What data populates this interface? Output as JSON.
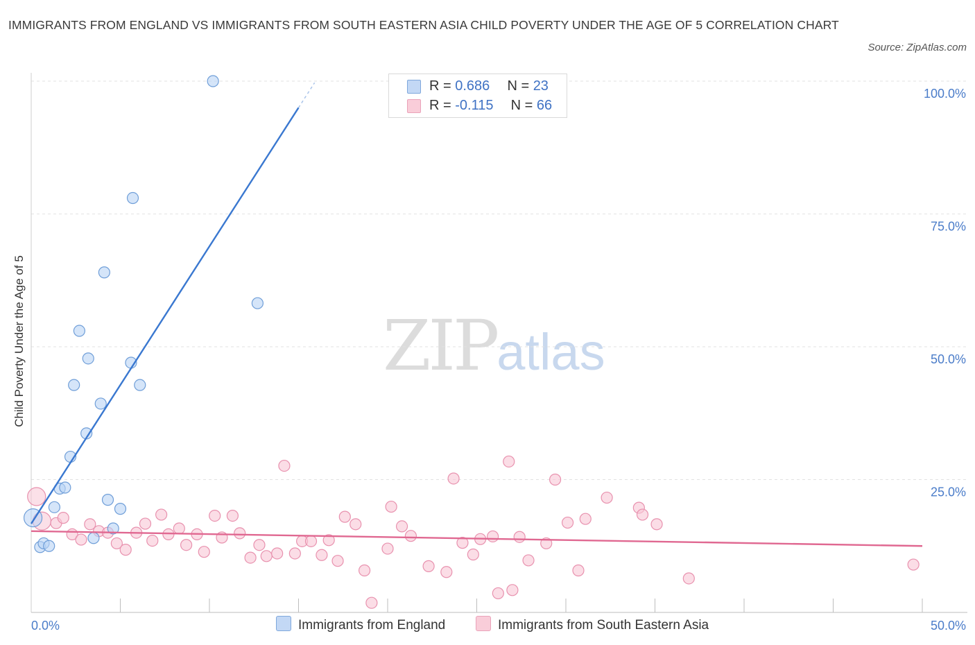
{
  "header": {
    "title": "IMMIGRANTS FROM ENGLAND VS IMMIGRANTS FROM SOUTH EASTERN ASIA CHILD POVERTY UNDER THE AGE OF 5 CORRELATION CHART",
    "source": "Source: ZipAtlas.com"
  },
  "watermark": {
    "zip": "ZIP",
    "atlas": "atlas"
  },
  "legend": {
    "england": {
      "r_label": "R =",
      "r_value": "0.686",
      "n_label": "N =",
      "n_value": "23"
    },
    "sea": {
      "r_label": "R =",
      "r_value": "-0.115",
      "n_label": "N =",
      "n_value": "66"
    }
  },
  "bottom_legend": {
    "england": "Immigrants from England",
    "sea": "Immigrants from South Eastern Asia"
  },
  "colors": {
    "england_fill": "#b9d3f5",
    "england_stroke": "#6f9ed8",
    "england_line": "#3a78d0",
    "sea_fill": "#f8c6d6",
    "sea_stroke": "#e891ae",
    "sea_line": "#e06891",
    "axis_text": "#4a7cc9",
    "grid": "#e2e2e2"
  },
  "chart_data": {
    "type": "scatter",
    "title": "IMMIGRANTS FROM ENGLAND VS IMMIGRANTS FROM SOUTH EASTERN ASIA CHILD POVERTY UNDER THE AGE OF 5 CORRELATION CHART",
    "xlabel": "",
    "ylabel": "Child Poverty Under the Age of 5",
    "xlim": [
      0,
      50
    ],
    "ylim": [
      0,
      100
    ],
    "x_tick_labels": [
      {
        "value": 0,
        "label": "0.0%"
      },
      {
        "value": 50,
        "label": "50.0%"
      }
    ],
    "y_tick_labels": [
      {
        "value": 100,
        "label": "100.0%"
      },
      {
        "value": 75,
        "label": "75.0%"
      },
      {
        "value": 50,
        "label": "50.0%"
      },
      {
        "value": 25,
        "label": "25.0%"
      }
    ],
    "grid": true,
    "legend_position": "top-center",
    "series": [
      {
        "name": "Immigrants from England",
        "R": 0.686,
        "N": 23,
        "trend": {
          "x": [
            0.0,
            15.0
          ],
          "y": [
            16.7,
            95.0
          ]
        },
        "points": [
          {
            "x": 0.1,
            "y": 17.8,
            "big": true
          },
          {
            "x": 0.5,
            "y": 12.3
          },
          {
            "x": 0.7,
            "y": 13.0
          },
          {
            "x": 1.0,
            "y": 12.5
          },
          {
            "x": 1.3,
            "y": 19.8
          },
          {
            "x": 1.6,
            "y": 23.3
          },
          {
            "x": 1.9,
            "y": 23.5
          },
          {
            "x": 2.2,
            "y": 29.3
          },
          {
            "x": 2.4,
            "y": 42.8
          },
          {
            "x": 2.7,
            "y": 53.0
          },
          {
            "x": 3.2,
            "y": 47.8
          },
          {
            "x": 3.5,
            "y": 14.0
          },
          {
            "x": 3.9,
            "y": 39.3
          },
          {
            "x": 3.1,
            "y": 33.7
          },
          {
            "x": 4.1,
            "y": 64.0
          },
          {
            "x": 4.3,
            "y": 21.2
          },
          {
            "x": 4.6,
            "y": 15.8
          },
          {
            "x": 5.0,
            "y": 19.5
          },
          {
            "x": 5.6,
            "y": 47.0
          },
          {
            "x": 5.7,
            "y": 78.0
          },
          {
            "x": 6.1,
            "y": 42.8
          },
          {
            "x": 10.2,
            "y": 100.0
          },
          {
            "x": 12.7,
            "y": 58.2
          }
        ]
      },
      {
        "name": "Immigrants from South Eastern Asia",
        "R": -0.115,
        "N": 66,
        "trend": {
          "x": [
            0.0,
            50.0
          ],
          "y": [
            15.3,
            12.5
          ]
        },
        "points": [
          {
            "x": 0.3,
            "y": 21.8,
            "big": true
          },
          {
            "x": 0.6,
            "y": 17.2,
            "big": true
          },
          {
            "x": 1.4,
            "y": 16.8
          },
          {
            "x": 1.8,
            "y": 17.8
          },
          {
            "x": 2.3,
            "y": 14.7
          },
          {
            "x": 2.8,
            "y": 13.7
          },
          {
            "x": 3.3,
            "y": 16.6
          },
          {
            "x": 3.8,
            "y": 15.3
          },
          {
            "x": 4.3,
            "y": 15.0
          },
          {
            "x": 4.8,
            "y": 13.0
          },
          {
            "x": 5.3,
            "y": 11.8
          },
          {
            "x": 5.9,
            "y": 15.0
          },
          {
            "x": 6.4,
            "y": 16.7
          },
          {
            "x": 6.8,
            "y": 13.5
          },
          {
            "x": 7.3,
            "y": 18.4
          },
          {
            "x": 7.7,
            "y": 14.7
          },
          {
            "x": 8.3,
            "y": 15.8
          },
          {
            "x": 8.7,
            "y": 12.7
          },
          {
            "x": 9.3,
            "y": 14.7
          },
          {
            "x": 9.7,
            "y": 11.4
          },
          {
            "x": 10.3,
            "y": 18.2
          },
          {
            "x": 10.7,
            "y": 14.1
          },
          {
            "x": 11.3,
            "y": 18.2
          },
          {
            "x": 11.7,
            "y": 14.9
          },
          {
            "x": 12.3,
            "y": 10.3
          },
          {
            "x": 12.8,
            "y": 12.7
          },
          {
            "x": 13.2,
            "y": 10.6
          },
          {
            "x": 13.8,
            "y": 11.1
          },
          {
            "x": 14.2,
            "y": 27.6
          },
          {
            "x": 14.8,
            "y": 11.1
          },
          {
            "x": 15.2,
            "y": 13.4
          },
          {
            "x": 15.7,
            "y": 13.4
          },
          {
            "x": 16.3,
            "y": 10.8
          },
          {
            "x": 16.7,
            "y": 13.6
          },
          {
            "x": 17.2,
            "y": 9.7
          },
          {
            "x": 17.6,
            "y": 18.0
          },
          {
            "x": 18.2,
            "y": 16.6
          },
          {
            "x": 18.7,
            "y": 7.9
          },
          {
            "x": 19.1,
            "y": 1.8
          },
          {
            "x": 20.0,
            "y": 12.0
          },
          {
            "x": 20.2,
            "y": 19.9
          },
          {
            "x": 20.8,
            "y": 16.2
          },
          {
            "x": 21.3,
            "y": 14.4
          },
          {
            "x": 22.3,
            "y": 8.7
          },
          {
            "x": 23.3,
            "y": 7.6
          },
          {
            "x": 23.7,
            "y": 25.2
          },
          {
            "x": 24.2,
            "y": 13.1
          },
          {
            "x": 24.8,
            "y": 10.9
          },
          {
            "x": 25.2,
            "y": 13.8
          },
          {
            "x": 25.9,
            "y": 14.3
          },
          {
            "x": 26.2,
            "y": 3.6
          },
          {
            "x": 26.8,
            "y": 28.4
          },
          {
            "x": 27.0,
            "y": 4.2
          },
          {
            "x": 27.4,
            "y": 14.2
          },
          {
            "x": 27.9,
            "y": 9.8
          },
          {
            "x": 28.9,
            "y": 13.0
          },
          {
            "x": 29.4,
            "y": 25.0
          },
          {
            "x": 30.1,
            "y": 16.9
          },
          {
            "x": 30.7,
            "y": 7.9
          },
          {
            "x": 31.1,
            "y": 17.6
          },
          {
            "x": 32.3,
            "y": 21.6
          },
          {
            "x": 34.1,
            "y": 19.7
          },
          {
            "x": 34.3,
            "y": 18.4
          },
          {
            "x": 35.1,
            "y": 16.6
          },
          {
            "x": 36.9,
            "y": 6.4
          },
          {
            "x": 49.5,
            "y": 9.0
          }
        ]
      }
    ]
  }
}
